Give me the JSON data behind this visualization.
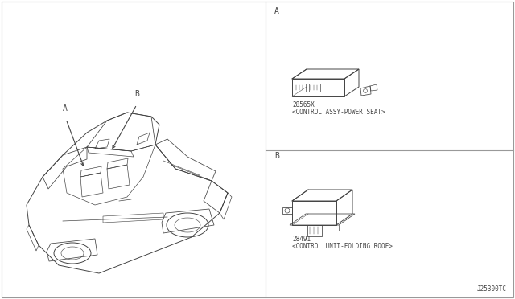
{
  "bg_color": "#ffffff",
  "border_color": "#999999",
  "line_color": "#444444",
  "text_color": "#444444",
  "diagram_code": "J25300TC",
  "part_a": {
    "label": "A",
    "part_number": "28565X",
    "description": "<CONTROL ASSY-POWER SEAT>"
  },
  "part_b": {
    "label": "B",
    "part_number": "28491",
    "description": "<CONTROL UNIT-FOLDING ROOF>"
  },
  "font_size_label": 7,
  "font_size_part": 5.5,
  "font_size_code": 5.5
}
